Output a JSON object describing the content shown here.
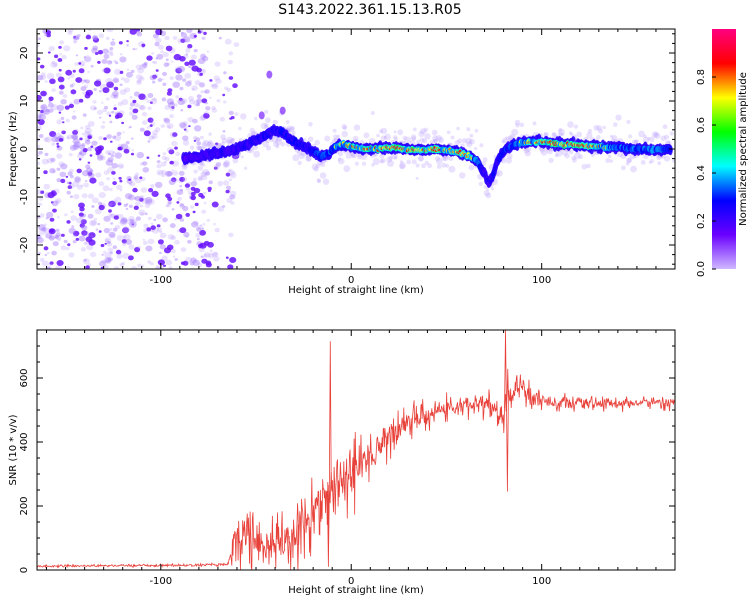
{
  "figure": {
    "title": "S143.2022.361.15.13.R05"
  },
  "colors": {
    "snr_line": "#e8413a",
    "frame": "#000000",
    "noise_purple": "#7a3cff"
  },
  "chart_data": [
    {
      "type": "heatmap",
      "xlabel": "Height of straight line (km)",
      "ylabel": "Frequency (Hz)",
      "xlim": [
        -165,
        170
      ],
      "ylim": [
        -25,
        25
      ],
      "xticks": [
        -100,
        0,
        100
      ],
      "yticks": [
        -20,
        -10,
        0,
        10,
        20
      ],
      "colorbar": {
        "label": "Normalized spectral amplitude",
        "range": [
          0,
          1
        ],
        "ticks": [
          0.0,
          0.2,
          0.4,
          0.6,
          0.8
        ],
        "colormap": [
          "#cfb8ff",
          "#6a00ff",
          "#0000ff",
          "#00ffff",
          "#00ff00",
          "#ffff00",
          "#ff0000",
          "#ff0080"
        ]
      },
      "noise_region_x": [
        -165,
        -75
      ],
      "ridge": [
        [
          -88,
          -2
        ],
        [
          -80,
          -1.5
        ],
        [
          -72,
          -1
        ],
        [
          -64,
          -0.5
        ],
        [
          -58,
          0.5
        ],
        [
          -52,
          1.5
        ],
        [
          -46,
          2.5
        ],
        [
          -40,
          4
        ],
        [
          -36,
          3.5
        ],
        [
          -32,
          2
        ],
        [
          -28,
          1
        ],
        [
          -24,
          0.5
        ],
        [
          -20,
          -0.5
        ],
        [
          -16,
          -1.5
        ],
        [
          -12,
          -1
        ],
        [
          -8,
          0.5
        ],
        [
          -4,
          1
        ],
        [
          0,
          0.5
        ],
        [
          6,
          0
        ],
        [
          12,
          0
        ],
        [
          20,
          0.3
        ],
        [
          28,
          0
        ],
        [
          36,
          -0.3
        ],
        [
          44,
          0
        ],
        [
          52,
          -0.3
        ],
        [
          58,
          -0.8
        ],
        [
          62,
          -1.5
        ],
        [
          66,
          -2.5
        ],
        [
          70,
          -5
        ],
        [
          72,
          -7
        ],
        [
          74,
          -6
        ],
        [
          76,
          -3
        ],
        [
          80,
          -0.5
        ],
        [
          86,
          1
        ],
        [
          92,
          1.5
        ],
        [
          100,
          1.5
        ],
        [
          110,
          1
        ],
        [
          120,
          0.8
        ],
        [
          130,
          0.5
        ],
        [
          140,
          0.3
        ],
        [
          150,
          0
        ],
        [
          160,
          -0.2
        ],
        [
          168,
          0
        ]
      ],
      "ridge_amplitude": [
        [
          -88,
          0.35
        ],
        [
          -70,
          0.4
        ],
        [
          -40,
          0.45
        ],
        [
          -20,
          0.5
        ],
        [
          0,
          0.75
        ],
        [
          20,
          0.85
        ],
        [
          40,
          0.8
        ],
        [
          60,
          0.75
        ],
        [
          72,
          0.4
        ],
        [
          80,
          0.5
        ],
        [
          100,
          0.8
        ],
        [
          120,
          0.85
        ],
        [
          140,
          0.6
        ],
        [
          160,
          0.6
        ],
        [
          168,
          0.5
        ]
      ],
      "spots": [
        {
          "x": -43,
          "y": 15.5,
          "amp": 0.2
        },
        {
          "x": -36,
          "y": 8,
          "amp": 0.1
        },
        {
          "x": -47,
          "y": 7,
          "amp": 0.1
        }
      ]
    },
    {
      "type": "line",
      "xlabel": "Height of straight line (km)",
      "ylabel": "SNR (10 * v/v)",
      "xlim": [
        -165,
        170
      ],
      "ylim": [
        0,
        750
      ],
      "xticks": [
        -100,
        0,
        100
      ],
      "yticks": [
        0,
        200,
        400,
        600
      ],
      "series": [
        {
          "color": "#e8413a",
          "trend": [
            [
              -165,
              12
            ],
            [
              -120,
              14
            ],
            [
              -80,
              15
            ],
            [
              -65,
              18
            ],
            [
              -60,
              110
            ],
            [
              -55,
              120
            ],
            [
              -50,
              95
            ],
            [
              -45,
              80
            ],
            [
              -40,
              75
            ],
            [
              -35,
              90
            ],
            [
              -30,
              130
            ],
            [
              -25,
              160
            ],
            [
              -20,
              190
            ],
            [
              -15,
              230
            ],
            [
              -10,
              260
            ],
            [
              -5,
              280
            ],
            [
              0,
              300
            ],
            [
              5,
              330
            ],
            [
              10,
              360
            ],
            [
              15,
              390
            ],
            [
              20,
              420
            ],
            [
              25,
              445
            ],
            [
              30,
              465
            ],
            [
              35,
              480
            ],
            [
              40,
              490
            ],
            [
              45,
              500
            ],
            [
              50,
              505
            ],
            [
              55,
              510
            ],
            [
              60,
              512
            ],
            [
              65,
              520
            ],
            [
              70,
              525
            ],
            [
              75,
              510
            ],
            [
              78,
              460
            ],
            [
              80,
              470
            ],
            [
              82,
              540
            ],
            [
              86,
              560
            ],
            [
              90,
              570
            ],
            [
              95,
              545
            ],
            [
              100,
              530
            ],
            [
              110,
              525
            ],
            [
              120,
              520
            ],
            [
              130,
              520
            ],
            [
              140,
              522
            ],
            [
              150,
              522
            ],
            [
              160,
              525
            ],
            [
              170,
              525
            ]
          ],
          "noise_amp": [
            [
              -165,
              3
            ],
            [
              -65,
              4
            ],
            [
              -60,
              80
            ],
            [
              -40,
              70
            ],
            [
              -20,
              90
            ],
            [
              0,
              80
            ],
            [
              20,
              55
            ],
            [
              40,
              30
            ],
            [
              60,
              25
            ],
            [
              75,
              40
            ],
            [
              80,
              80
            ],
            [
              90,
              35
            ],
            [
              110,
              18
            ],
            [
              170,
              15
            ]
          ],
          "spikes": [
            [
              -11,
              715
            ],
            [
              -12,
              10
            ],
            [
              81,
              750
            ],
            [
              82,
              245
            ],
            [
              -28,
              0
            ],
            [
              -33,
              20
            ]
          ]
        }
      ]
    }
  ]
}
